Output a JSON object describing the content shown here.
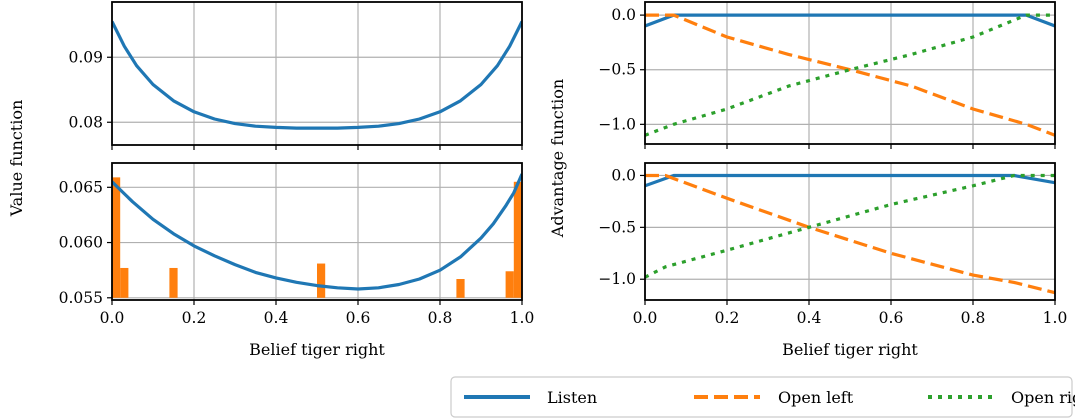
{
  "chart_data": [
    {
      "type": "line",
      "id": "top-left",
      "xlabel": "",
      "ylabel": "",
      "xlim": [
        0,
        1
      ],
      "ylim": [
        0.0765,
        0.0985
      ],
      "xticks": [
        0,
        0.2,
        0.4,
        0.6,
        0.8,
        1.0
      ],
      "yticks": [
        0.08,
        0.09
      ],
      "ytick_labels": [
        "0.08",
        "0.09"
      ],
      "show_xtick_labels": false,
      "grid": true,
      "series": [
        {
          "color": "#1f77b4",
          "style": "solid",
          "x": [
            0,
            0.03,
            0.06,
            0.1,
            0.15,
            0.2,
            0.25,
            0.3,
            0.35,
            0.4,
            0.45,
            0.5,
            0.55,
            0.6,
            0.65,
            0.7,
            0.75,
            0.8,
            0.85,
            0.9,
            0.94,
            0.97,
            1.0
          ],
          "y": [
            0.0955,
            0.0917,
            0.0887,
            0.0858,
            0.0833,
            0.0816,
            0.0805,
            0.0798,
            0.0794,
            0.0792,
            0.0791,
            0.0791,
            0.0791,
            0.0792,
            0.0794,
            0.0798,
            0.0805,
            0.0816,
            0.0833,
            0.0858,
            0.0887,
            0.0917,
            0.0955
          ]
        }
      ]
    },
    {
      "type": "line",
      "id": "bottom-left",
      "xlabel": "Belief tiger right",
      "ylabel": "",
      "xlim": [
        0,
        1
      ],
      "ylim": [
        0.0548,
        0.0672
      ],
      "xticks": [
        0,
        0.2,
        0.4,
        0.6,
        0.8,
        1.0
      ],
      "xtick_labels": [
        "0.0",
        "0.2",
        "0.4",
        "0.6",
        "0.8",
        "1.0"
      ],
      "yticks": [
        0.055,
        0.06,
        0.065
      ],
      "ytick_labels": [
        "0.055",
        "0.060",
        "0.065"
      ],
      "grid": true,
      "series": [
        {
          "color": "#1f77b4",
          "style": "solid",
          "x": [
            0,
            0.05,
            0.1,
            0.15,
            0.2,
            0.25,
            0.3,
            0.35,
            0.4,
            0.45,
            0.5,
            0.55,
            0.6,
            0.65,
            0.7,
            0.75,
            0.8,
            0.85,
            0.9,
            0.93,
            0.96,
            0.98,
            1.0
          ],
          "y": [
            0.0655,
            0.0637,
            0.0621,
            0.0608,
            0.0597,
            0.0588,
            0.058,
            0.0573,
            0.0568,
            0.0564,
            0.0561,
            0.0559,
            0.0558,
            0.0559,
            0.0562,
            0.0567,
            0.0575,
            0.0587,
            0.0604,
            0.0617,
            0.0633,
            0.0645,
            0.0662
          ]
        }
      ],
      "bars": {
        "color": "#ff7f0e",
        "width": 0.02,
        "base": 0.055,
        "x": [
          0.01,
          0.03,
          0.15,
          0.51,
          0.85,
          0.97,
          0.99
        ],
        "y": [
          0.0659,
          0.0577,
          0.0577,
          0.0581,
          0.0567,
          0.0574,
          0.0655
        ]
      }
    },
    {
      "type": "line",
      "id": "top-right",
      "xlabel": "",
      "ylabel": "",
      "xlim": [
        0,
        1
      ],
      "ylim": [
        -1.18,
        0.12
      ],
      "xticks": [
        0,
        0.2,
        0.4,
        0.6,
        0.8,
        1.0
      ],
      "show_xtick_labels": false,
      "yticks": [
        0.0,
        -0.5,
        -1.0
      ],
      "ytick_labels": [
        "0.0",
        "−0.5",
        "−1.0"
      ],
      "grid": true,
      "series": [
        {
          "name": "Listen",
          "color": "#1f77b4",
          "style": "solid",
          "x": [
            0,
            0.07,
            0.93,
            1.0
          ],
          "y": [
            -0.1,
            0.0,
            0.0,
            -0.1
          ]
        },
        {
          "name": "Open left",
          "color": "#ff7f0e",
          "style": "dashed",
          "x": [
            0,
            0.07,
            0.2,
            0.35,
            0.5,
            0.65,
            0.8,
            0.93,
            1.0
          ],
          "y": [
            0.0,
            0.0,
            -0.2,
            -0.36,
            -0.5,
            -0.65,
            -0.86,
            -1.0,
            -1.1
          ]
        },
        {
          "name": "Open right",
          "color": "#2ca02c",
          "style": "dotted",
          "x": [
            0,
            0.07,
            0.2,
            0.35,
            0.5,
            0.65,
            0.8,
            0.93,
            1.0
          ],
          "y": [
            -1.1,
            -1.0,
            -0.86,
            -0.65,
            -0.5,
            -0.36,
            -0.2,
            0.0,
            0.0
          ]
        }
      ]
    },
    {
      "type": "line",
      "id": "bottom-right",
      "xlabel": "Belief tiger right",
      "ylabel": "",
      "xlim": [
        0,
        1
      ],
      "ylim": [
        -1.2,
        0.12
      ],
      "xticks": [
        0,
        0.2,
        0.4,
        0.6,
        0.8,
        1.0
      ],
      "xtick_labels": [
        "0.0",
        "0.2",
        "0.4",
        "0.6",
        "0.8",
        "1.0"
      ],
      "yticks": [
        0.0,
        -0.5,
        -1.0
      ],
      "ytick_labels": [
        "0.0",
        "−0.5",
        "−1.0"
      ],
      "grid": true,
      "series": [
        {
          "name": "Listen",
          "color": "#1f77b4",
          "style": "solid",
          "x": [
            0,
            0.07,
            0.9,
            1.0
          ],
          "y": [
            -0.1,
            0.0,
            0.0,
            -0.07
          ]
        },
        {
          "name": "Open left",
          "color": "#ff7f0e",
          "style": "dashed",
          "x": [
            0,
            0.05,
            0.2,
            0.4,
            0.6,
            0.8,
            0.9,
            1.0
          ],
          "y": [
            0.0,
            0.0,
            -0.22,
            -0.5,
            -0.75,
            -0.96,
            -1.03,
            -1.13
          ]
        },
        {
          "name": "Open right",
          "color": "#2ca02c",
          "style": "dotted",
          "x": [
            0,
            0.05,
            0.2,
            0.4,
            0.6,
            0.8,
            0.9,
            1.0
          ],
          "y": [
            -0.98,
            -0.88,
            -0.72,
            -0.5,
            -0.28,
            -0.1,
            0.0,
            0.0
          ]
        }
      ]
    }
  ],
  "labels": {
    "value_function_ylabel": "Value function",
    "advantage_function_ylabel": "Advantage function"
  },
  "legend": {
    "placement": "bottom-right",
    "entries": [
      {
        "label": "Listen",
        "color": "#1f77b4",
        "style": "solid"
      },
      {
        "label": "Open left",
        "color": "#ff7f0e",
        "style": "dashed"
      },
      {
        "label": "Open right",
        "color": "#2ca02c",
        "style": "dotted"
      }
    ]
  }
}
